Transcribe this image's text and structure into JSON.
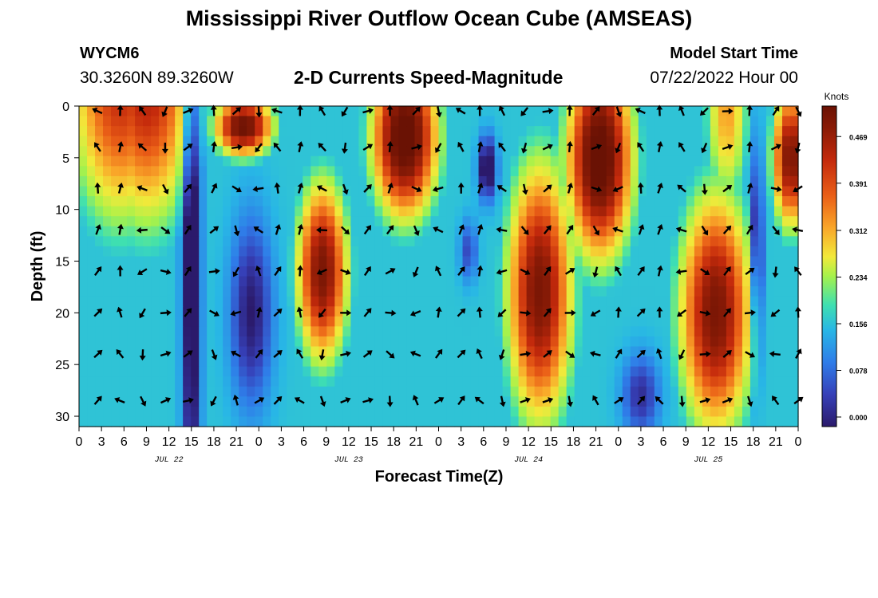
{
  "header": {
    "title": "Mississippi River Outflow Ocean Cube (AMSEAS)",
    "station": "WYCM6",
    "coords": "30.3260N  89.3260W",
    "subtitle": "2-D Currents Speed-Magnitude",
    "model_start_label": "Model Start Time",
    "model_start_value": "07/22/2022 Hour 00"
  },
  "footer": {
    "title": "Mississippi River Outflow Ocean Cube (AMSEAS)"
  },
  "chart_data": {
    "type": "heatmap",
    "xlabel": "Forecast Time(Z)",
    "ylabel": "Depth (ft)",
    "x_tick_labels": [
      "0",
      "3",
      "6",
      "9",
      "12",
      "15",
      "18",
      "21",
      "0",
      "3",
      "6",
      "9",
      "12",
      "15",
      "18",
      "21",
      "0",
      "3",
      "6",
      "9",
      "12",
      "15",
      "18",
      "21",
      "0",
      "3",
      "6",
      "9",
      "12",
      "15",
      "18",
      "21",
      "0"
    ],
    "date_labels": [
      {
        "text": "JUL 22",
        "hour": 12
      },
      {
        "text": "JUL 23",
        "hour": 36
      },
      {
        "text": "JUL 24",
        "hour": 60
      },
      {
        "text": "JUL 25",
        "hour": 84
      }
    ],
    "xlim": [
      0,
      96
    ],
    "ylim": [
      0,
      31
    ],
    "y_ticks": [
      0,
      5,
      10,
      15,
      20,
      25,
      30
    ],
    "colorbar": {
      "title": "Knots",
      "ticks": [
        "0.000",
        "0.078",
        "0.156",
        "0.234",
        "0.312",
        "0.391",
        "0.469"
      ],
      "range": [
        0,
        0.52
      ]
    },
    "colors": [
      "#2b1a6b",
      "#3640b8",
      "#2f7ce8",
      "#28b6e6",
      "#3fe0b0",
      "#a6f24b",
      "#f2e93a",
      "#f9a629",
      "#ea5f17",
      "#c42a0c",
      "#8a1b06",
      "#6a1204"
    ],
    "vector_depths": [
      0.5,
      4,
      8,
      12,
      16,
      20,
      24,
      28.5
    ],
    "vector_hours": [
      2.5,
      5.5,
      8.5,
      11.5,
      14.5,
      18,
      21,
      24,
      26.5,
      29.5,
      32.5,
      35.5,
      38.5,
      41.5,
      45,
      48,
      51,
      53.5,
      56.5,
      59.5,
      62.5,
      65.5,
      69,
      72,
      75,
      77.5,
      80.5,
      83.5,
      86.5,
      89.5,
      93,
      96
    ]
  }
}
